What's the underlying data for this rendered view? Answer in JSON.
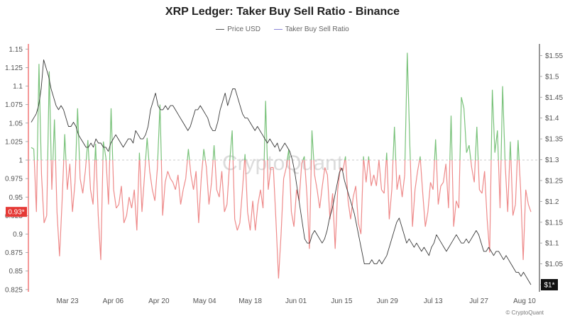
{
  "chart_data": {
    "type": "line",
    "title": "XRP Ledger: Taker Buy Sell Ratio - Binance",
    "legend": [
      "Price USD",
      "Taker Buy Sell Ratio"
    ],
    "legend_placement": "top-center",
    "grid": false,
    "colors": {
      "price": "#3a3a3a",
      "ratio_above": "#79c27a",
      "ratio_below": "#ee8a8a",
      "baseline": "#bbbbbb"
    },
    "x_ticks": [
      "Mar 23",
      "Apr 06",
      "Apr 20",
      "May 04",
      "May 18",
      "Jun 01",
      "Jun 15",
      "Jun 29",
      "Jul 13",
      "Jul 27",
      "Aug 10"
    ],
    "y_left": {
      "range": [
        0.822,
        1.157
      ],
      "ticks": [
        "0.825",
        "0.85",
        "0.875",
        "0.9",
        "0.925",
        "0.95",
        "0.975",
        "1",
        "1.025",
        "1.05",
        "1.075",
        "1.1",
        "1.125",
        "1.15"
      ],
      "baseline": 1
    },
    "y_right": {
      "range": [
        0.983,
        1.578
      ],
      "ticks": [
        "$1",
        "$1.05",
        "$1.1",
        "$1.15",
        "$1.2",
        "$1.25",
        "$1.3",
        "$1.35",
        "$1.4",
        "$1.45",
        "$1.5",
        "$1.55"
      ]
    },
    "current_labels": {
      "ratio": "0.93*",
      "price": "$1*"
    },
    "watermark": "CryptoQuant",
    "credit": "© CryptoQuant",
    "series": [
      {
        "name": "Price USD",
        "axis": "right",
        "values": [
          1.39,
          1.4,
          1.41,
          1.43,
          1.47,
          1.54,
          1.52,
          1.5,
          1.47,
          1.45,
          1.43,
          1.42,
          1.43,
          1.42,
          1.4,
          1.38,
          1.38,
          1.39,
          1.38,
          1.36,
          1.35,
          1.34,
          1.33,
          1.33,
          1.34,
          1.33,
          1.35,
          1.34,
          1.34,
          1.33,
          1.33,
          1.32,
          1.34,
          1.35,
          1.36,
          1.35,
          1.34,
          1.33,
          1.34,
          1.35,
          1.35,
          1.34,
          1.37,
          1.36,
          1.35,
          1.35,
          1.36,
          1.38,
          1.42,
          1.44,
          1.46,
          1.43,
          1.42,
          1.42,
          1.43,
          1.42,
          1.43,
          1.43,
          1.42,
          1.41,
          1.4,
          1.39,
          1.38,
          1.37,
          1.38,
          1.4,
          1.42,
          1.42,
          1.43,
          1.42,
          1.41,
          1.4,
          1.38,
          1.37,
          1.37,
          1.39,
          1.42,
          1.44,
          1.46,
          1.43,
          1.45,
          1.47,
          1.47,
          1.45,
          1.43,
          1.41,
          1.4,
          1.4,
          1.39,
          1.38,
          1.37,
          1.38,
          1.37,
          1.36,
          1.35,
          1.34,
          1.35,
          1.34,
          1.33,
          1.34,
          1.32,
          1.33,
          1.34,
          1.33,
          1.32,
          1.3,
          1.27,
          1.23,
          1.19,
          1.15,
          1.11,
          1.1,
          1.1,
          1.12,
          1.13,
          1.12,
          1.11,
          1.1,
          1.11,
          1.13,
          1.16,
          1.18,
          1.21,
          1.24,
          1.27,
          1.28,
          1.25,
          1.23,
          1.21,
          1.19,
          1.17,
          1.14,
          1.11,
          1.08,
          1.05,
          1.05,
          1.05,
          1.06,
          1.05,
          1.05,
          1.06,
          1.05,
          1.06,
          1.07,
          1.09,
          1.11,
          1.13,
          1.15,
          1.16,
          1.14,
          1.12,
          1.1,
          1.11,
          1.1,
          1.09,
          1.1,
          1.09,
          1.08,
          1.09,
          1.08,
          1.07,
          1.09,
          1.1,
          1.12,
          1.11,
          1.1,
          1.09,
          1.08,
          1.09,
          1.1,
          1.11,
          1.12,
          1.11,
          1.1,
          1.1,
          1.11,
          1.1,
          1.11,
          1.12,
          1.13,
          1.12,
          1.1,
          1.08,
          1.08,
          1.09,
          1.08,
          1.07,
          1.08,
          1.08,
          1.07,
          1.06,
          1.07,
          1.06,
          1.05,
          1.04,
          1.03,
          1.03,
          1.02,
          1.03,
          1.02,
          1.01,
          1.0
        ]
      },
      {
        "name": "Taker Buy Sell Ratio",
        "axis": "left",
        "values": [
          1.017,
          1.015,
          0.93,
          1.13,
          0.98,
          0.915,
          0.925,
          1.12,
          0.96,
          1.055,
          0.93,
          0.87,
          0.945,
          1.035,
          0.96,
          0.995,
          0.93,
          0.97,
          1.07,
          0.975,
          0.955,
          0.985,
          1.027,
          0.96,
          0.94,
          1.022,
          0.925,
          0.865,
          1.025,
          1.003,
          0.94,
          1.07,
          0.96,
          0.935,
          0.94,
          0.965,
          0.915,
          0.925,
          0.95,
          0.935,
          0.96,
          0.905,
          1.01,
          0.93,
          0.98,
          1.03,
          0.985,
          0.96,
          0.945,
          0.99,
          1.075,
          0.925,
          0.97,
          0.985,
          0.975,
          0.97,
          0.96,
          0.98,
          0.94,
          0.96,
          0.975,
          1.015,
          0.98,
          0.96,
          0.985,
          0.915,
          0.975,
          1.015,
          0.99,
          0.94,
          0.97,
          1.02,
          0.96,
          0.95,
          0.985,
          0.93,
          0.94,
          0.995,
          1.04,
          0.92,
          0.905,
          0.915,
          0.96,
          1.008,
          0.93,
          0.905,
          0.945,
          0.905,
          0.94,
          0.96,
          0.935,
          1.08,
          0.96,
          0.99,
          0.99,
          0.92,
          0.84,
          0.9,
          0.975,
          0.99,
          1.015,
          0.93,
          0.91,
          0.96,
          0.945,
          0.995,
          1.005,
          0.955,
          0.88,
          1.04,
          0.98,
          0.96,
          0.935,
          0.965,
          0.99,
          0.98,
          0.92,
          0.955,
          0.88,
          0.96,
          0.99,
          0.985,
          1.005,
          0.945,
          0.92,
          0.95,
          0.965,
          0.915,
          0.9,
          1.005,
          0.97,
          1.005,
          0.965,
          0.98,
          0.965,
          1.0,
          0.96,
          0.955,
          1.01,
          0.92,
          0.96,
          1.045,
          0.96,
          0.98,
          0.95,
          0.98,
          1.145,
          1.02,
          0.91,
          0.96,
          0.985,
          1.005,
          0.955,
          0.91,
          0.93,
          0.97,
          0.96,
          1.028,
          0.94,
          0.965,
          0.97,
          0.995,
          0.935,
          1.06,
          0.91,
          0.945,
          0.935,
          1.085,
          1.07,
          1.01,
          1.02,
          0.99,
          0.97,
          1.045,
          0.96,
          0.955,
          0.985,
          0.92,
          0.875,
          1.095,
          1.01,
          1.04,
          0.935,
          1.1,
          0.995,
          0.93,
          1.025,
          0.925,
          0.94,
          1.027,
          0.96,
          0.865,
          0.96,
          0.94,
          0.93
        ]
      }
    ]
  }
}
